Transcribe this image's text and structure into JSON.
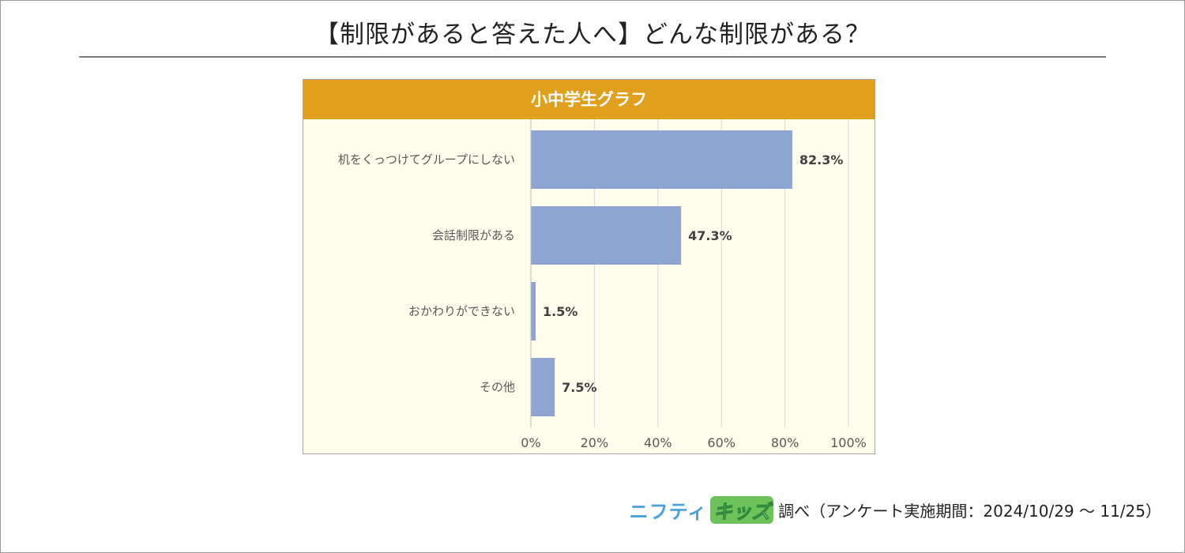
{
  "page": {
    "title": "【制限があると答えた人へ】どんな制限がある？",
    "footer": {
      "brand_part1": "ニフティ",
      "brand_part2": "キッズ",
      "text": "調べ（アンケート実施期間：2024/10/29 ～ 11/25）"
    }
  },
  "colors": {
    "header": "#e19f1e",
    "bar": "#8ea5d4",
    "plot_background": "#fefcea",
    "grid": "#d9d9d9"
  },
  "chart_data": {
    "type": "bar",
    "orientation": "horizontal",
    "title": "小中学生グラフ",
    "categories": [
      "机をくっつけてグループにしない",
      "会話制限がある",
      "おかわりができない",
      "その他"
    ],
    "values": [
      82.3,
      47.3,
      1.5,
      7.5
    ],
    "value_labels": [
      "82.3%",
      "47.3%",
      "1.5%",
      "7.5%"
    ],
    "xlim": [
      0,
      100
    ],
    "xticks": [
      0,
      20,
      40,
      60,
      80,
      100
    ],
    "xtick_labels": [
      "0%",
      "20%",
      "40%",
      "60%",
      "80%",
      "100%"
    ],
    "grid": true,
    "legend": "none"
  }
}
